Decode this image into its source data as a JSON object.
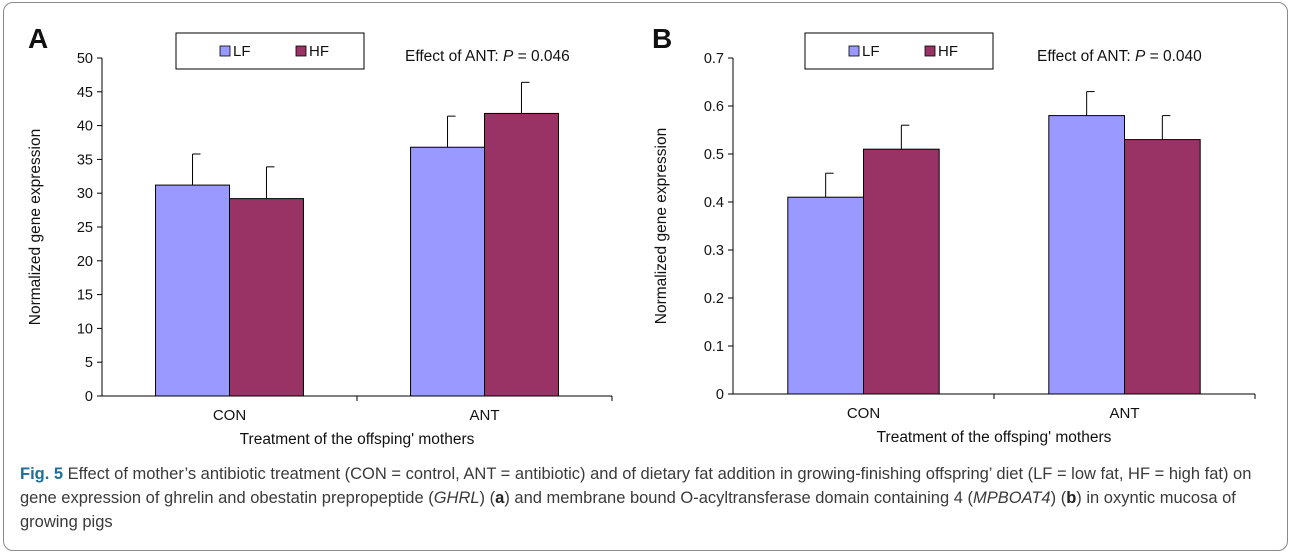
{
  "chart_data": [
    {
      "panel": "A",
      "type": "bar",
      "categories": [
        "CON",
        "ANT"
      ],
      "series": [
        {
          "name": "LF",
          "values": [
            31.2,
            36.8
          ],
          "errors": [
            4.6,
            4.6
          ],
          "color": "#9999ff"
        },
        {
          "name": "HF",
          "values": [
            29.2,
            41.8
          ],
          "errors": [
            4.7,
            4.6
          ],
          "color": "#993366"
        }
      ],
      "ylabel": "Normalized gene expression",
      "xlabel": "Treatment of the offsping' mothers",
      "ylim": [
        0,
        50
      ],
      "yticks": [
        "0",
        "5",
        "10",
        "15",
        "20",
        "25",
        "30",
        "35",
        "40",
        "45",
        "50"
      ],
      "annotation_prefix": "Effect of ANT: ",
      "annotation_p": "P",
      "annotation_value": " = 0.046",
      "legend_position": "top-left",
      "grid": false
    },
    {
      "panel": "B",
      "type": "bar",
      "categories": [
        "CON",
        "ANT"
      ],
      "series": [
        {
          "name": "LF",
          "values": [
            0.41,
            0.58
          ],
          "errors": [
            0.05,
            0.05
          ],
          "color": "#9999ff"
        },
        {
          "name": "HF",
          "values": [
            0.51,
            0.53
          ],
          "errors": [
            0.05,
            0.05
          ],
          "color": "#993366"
        }
      ],
      "ylabel": "Normalized gene expression",
      "xlabel": "Treatment of the offsping' mothers",
      "ylim": [
        0,
        0.7
      ],
      "yticks": [
        "0",
        "0.1",
        "0.2",
        "0.3",
        "0.4",
        "0.5",
        "0.6",
        "0.7"
      ],
      "annotation_prefix": "Effect of ANT: ",
      "annotation_p": "P",
      "annotation_value": " = 0.040",
      "legend_position": "top-left",
      "grid": false
    }
  ],
  "caption": {
    "label": "Fig. 5",
    "t1": " Effect of mother’s antibiotic treatment (CON = control, ANT = antibiotic) and of dietary fat addition in growing-finishing offspring’ diet (LF = low fat, HF = high fat) on gene expression of ghrelin and obestatin prepropeptide (",
    "i1": "GHRL",
    "t2": ") (",
    "b1": "a",
    "t3": ") and membrane bound O-acyltransferase domain containing 4 (",
    "i2": "MPBOAT4",
    "t4": ") (",
    "b2": "b",
    "t5": ") in oxyntic mucosa of growing pigs"
  }
}
